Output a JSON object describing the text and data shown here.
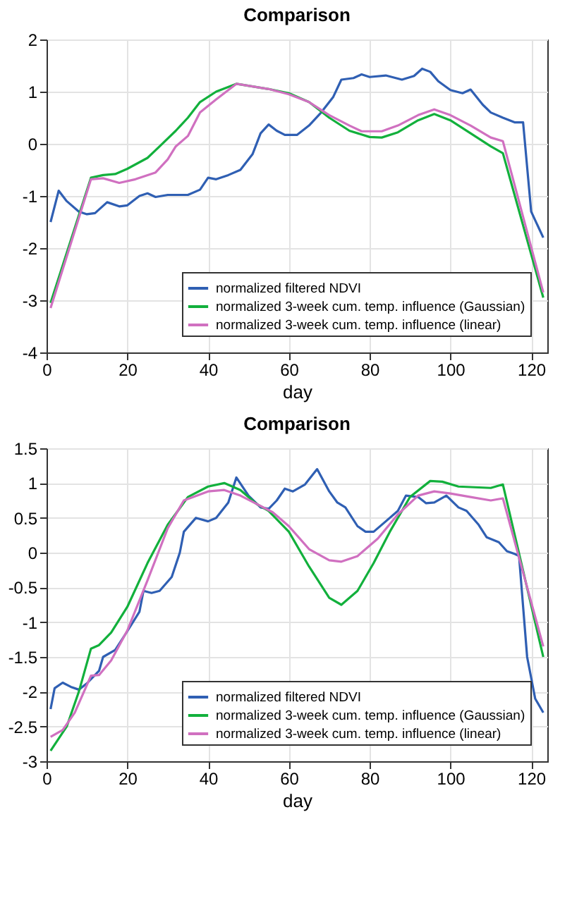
{
  "chart_data": [
    {
      "type": "line",
      "title": "Comparison",
      "xlabel": "day",
      "xlim": [
        0,
        124
      ],
      "xticks": [
        0,
        20,
        40,
        60,
        80,
        100,
        120
      ],
      "ylim": [
        -4,
        2
      ],
      "yticks": [
        -4,
        -3,
        -2,
        -1,
        0,
        1,
        2
      ],
      "grid": true,
      "legend": "bottom right",
      "series": [
        {
          "name": "normalized filtered NDVI",
          "color": "#2f5fb3",
          "x": [
            1,
            3,
            5,
            8,
            10,
            12,
            15,
            18,
            20,
            23,
            25,
            27,
            30,
            35,
            38,
            40,
            42,
            45,
            48,
            51,
            53,
            55,
            57,
            59,
            62,
            65,
            68,
            71,
            73,
            76,
            78,
            80,
            84,
            88,
            91,
            93,
            95,
            97,
            100,
            103,
            105,
            108,
            110,
            113,
            116,
            118,
            120,
            123
          ],
          "values": [
            -1.5,
            -0.9,
            -1.1,
            -1.3,
            -1.35,
            -1.33,
            -1.12,
            -1.2,
            -1.18,
            -1.0,
            -0.95,
            -1.02,
            -0.98,
            -0.98,
            -0.88,
            -0.65,
            -0.68,
            -0.6,
            -0.5,
            -0.2,
            0.2,
            0.37,
            0.25,
            0.17,
            0.17,
            0.35,
            0.6,
            0.9,
            1.23,
            1.26,
            1.33,
            1.28,
            1.31,
            1.23,
            1.3,
            1.44,
            1.38,
            1.2,
            1.03,
            0.97,
            1.04,
            0.75,
            0.6,
            0.5,
            0.41,
            0.41,
            -1.3,
            -1.8
          ]
        },
        {
          "name": "normalized 3-week cum. temp. influence (Gaussian)",
          "color": "#12b03c",
          "x": [
            1,
            11,
            14,
            17,
            20,
            25,
            28,
            32,
            35,
            38,
            42,
            47,
            55,
            60,
            65,
            70,
            75,
            80,
            83,
            87,
            92,
            96,
            100,
            105,
            110,
            113,
            123
          ],
          "values": [
            -3.05,
            -0.65,
            -0.6,
            -0.58,
            -0.48,
            -0.27,
            -0.05,
            0.25,
            0.5,
            0.8,
            1.0,
            1.15,
            1.05,
            0.97,
            0.8,
            0.5,
            0.25,
            0.13,
            0.12,
            0.22,
            0.45,
            0.57,
            0.45,
            0.2,
            -0.05,
            -0.18,
            -2.95
          ]
        },
        {
          "name": "normalized 3-week cum. temp. influence (linear)",
          "color": "#d070c0",
          "x": [
            1,
            11,
            14,
            18,
            22,
            27,
            30,
            32,
            35,
            38,
            42,
            47,
            55,
            60,
            65,
            70,
            75,
            78,
            83,
            87,
            92,
            96,
            100,
            105,
            110,
            113,
            123
          ],
          "values": [
            -3.15,
            -0.68,
            -0.66,
            -0.75,
            -0.68,
            -0.55,
            -0.3,
            -0.05,
            0.15,
            0.6,
            0.85,
            1.15,
            1.05,
            0.95,
            0.8,
            0.55,
            0.35,
            0.24,
            0.24,
            0.35,
            0.55,
            0.66,
            0.55,
            0.35,
            0.12,
            0.05,
            -2.85
          ]
        }
      ]
    },
    {
      "type": "line",
      "title": "Comparison",
      "xlabel": "day",
      "xlim": [
        0,
        124
      ],
      "xticks": [
        0,
        20,
        40,
        60,
        80,
        100,
        120
      ],
      "ylim": [
        -3,
        1.5
      ],
      "yticks": [
        -3,
        -2.5,
        -2,
        -1.5,
        -1,
        -0.5,
        0,
        0.5,
        1,
        1.5
      ],
      "grid": true,
      "legend": "bottom right",
      "series": [
        {
          "name": "normalized filtered NDVI",
          "color": "#2f5fb3",
          "x": [
            1,
            2,
            4,
            6,
            8,
            10,
            13,
            14,
            17,
            20,
            23,
            24,
            26,
            28,
            31,
            33,
            34,
            37,
            40,
            42,
            45,
            47,
            50,
            53,
            55,
            57,
            59,
            61,
            64,
            67,
            70,
            72,
            74,
            77,
            79,
            81,
            84,
            87,
            89,
            92,
            94,
            96,
            99,
            102,
            104,
            107,
            109,
            112,
            114,
            116,
            117,
            119,
            121,
            123
          ],
          "values": [
            -2.25,
            -1.95,
            -1.87,
            -1.93,
            -1.97,
            -1.88,
            -1.7,
            -1.5,
            -1.4,
            -1.13,
            -0.85,
            -0.55,
            -0.58,
            -0.55,
            -0.35,
            0.0,
            0.3,
            0.5,
            0.45,
            0.5,
            0.72,
            1.08,
            0.82,
            0.65,
            0.63,
            0.75,
            0.92,
            0.88,
            0.98,
            1.2,
            0.88,
            0.72,
            0.65,
            0.38,
            0.3,
            0.3,
            0.45,
            0.6,
            0.82,
            0.8,
            0.71,
            0.72,
            0.82,
            0.65,
            0.6,
            0.4,
            0.22,
            0.15,
            0.02,
            -0.02,
            -0.05,
            -1.5,
            -2.1,
            -2.3
          ]
        },
        {
          "name": "normalized 3-week cum. temp. influence (Gaussian)",
          "color": "#12b03c",
          "x": [
            1,
            5,
            8,
            11,
            13,
            16,
            20,
            25,
            30,
            35,
            40,
            44,
            48,
            52,
            55,
            60,
            65,
            70,
            73,
            77,
            81,
            85,
            90,
            95,
            98,
            102,
            110,
            113,
            123
          ],
          "values": [
            -2.85,
            -2.5,
            -2.0,
            -1.38,
            -1.33,
            -1.15,
            -0.78,
            -0.15,
            0.4,
            0.8,
            0.95,
            1.0,
            0.9,
            0.7,
            0.6,
            0.3,
            -0.2,
            -0.65,
            -0.75,
            -0.55,
            -0.15,
            0.3,
            0.8,
            1.03,
            1.02,
            0.95,
            0.93,
            0.98,
            -1.5
          ]
        },
        {
          "name": "normalized 3-week cum. temp. influence (linear)",
          "color": "#d070c0",
          "x": [
            1,
            4,
            7,
            11,
            13,
            16,
            20,
            25,
            30,
            34,
            40,
            44,
            48,
            52,
            56,
            60,
            65,
            70,
            73,
            77,
            82,
            87,
            92,
            96,
            100,
            105,
            110,
            113,
            123
          ],
          "values": [
            -2.65,
            -2.55,
            -2.3,
            -1.77,
            -1.76,
            -1.55,
            -1.12,
            -0.4,
            0.35,
            0.75,
            0.88,
            0.9,
            0.82,
            0.7,
            0.58,
            0.38,
            0.05,
            -0.11,
            -0.13,
            -0.05,
            0.2,
            0.55,
            0.82,
            0.88,
            0.85,
            0.8,
            0.75,
            0.78,
            -1.35
          ]
        }
      ]
    }
  ]
}
